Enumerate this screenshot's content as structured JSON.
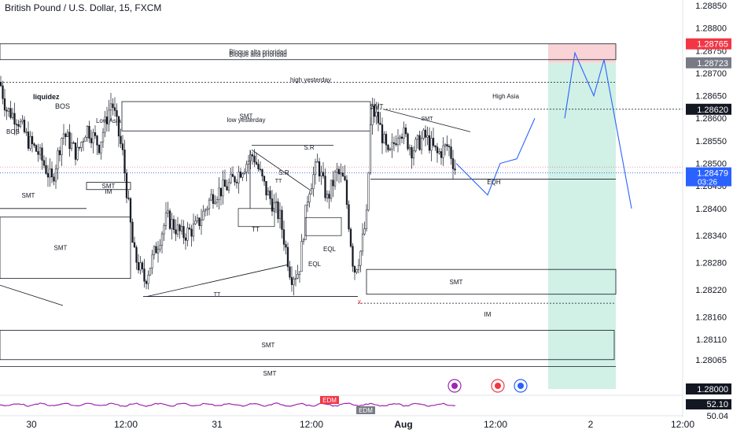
{
  "chart_data": {
    "type": "candlestick",
    "title": "British Pound / U.S. Dollar, 15, FXCM",
    "ylim": [
      1.2798,
      1.2888
    ],
    "y_ticks": [
      "1.28850",
      "1.28800",
      "1.28750",
      "1.28700",
      "1.28650",
      "1.28600",
      "1.28550",
      "1.28500",
      "1.28450",
      "1.28400",
      "1.28340",
      "1.28280",
      "1.28220",
      "1.28160",
      "1.28110",
      "1.28065",
      "1.28000"
    ],
    "x_ticks": [
      "30",
      "12:00",
      "31",
      "12:00",
      "Aug",
      "12:00",
      "2",
      "12:00"
    ],
    "price_tags": [
      {
        "label": "1.28765",
        "value": 1.28765,
        "color": "#f23645"
      },
      {
        "label": "1.28723",
        "value": 1.28723,
        "color": "#787b86"
      },
      {
        "label": "1.28620",
        "value": 1.2862,
        "color": "#131722"
      },
      {
        "label": "1.28479",
        "value": 1.28479,
        "color": "#2962ff",
        "sub": "03:26"
      },
      {
        "label": "1.28000",
        "value": 1.28,
        "color": "#131722"
      }
    ],
    "zones": [
      {
        "label": "Bloque alta prioridad",
        "top": 1.28765,
        "bottom": 1.2873
      },
      {
        "label": "SMT",
        "top": 1.28637,
        "bottom": 1.28572
      },
      {
        "label": "SMT",
        "top": 1.28458,
        "bottom": 1.28442
      },
      {
        "label": "SMT",
        "top": 1.28381,
        "bottom": 1.28245
      },
      {
        "label": "SMT",
        "top": 1.28265,
        "bottom": 1.2821
      },
      {
        "label": "SMT",
        "top": 1.2813,
        "bottom": 1.28065
      }
    ],
    "annotations": [
      "Bloque alta prioridad",
      "liquidez",
      "BOS",
      "BOS",
      "Low Asia",
      "SMT",
      "IM",
      "high yesterday",
      "High Asia",
      "S.R",
      "S.R",
      "TT",
      "TT",
      "TT",
      "SMT",
      "EQL",
      "EQL",
      "EQH",
      "SMT",
      "low yesterday",
      "IM",
      "SMT"
    ],
    "projection": [
      1.285,
      1.2843,
      1.285,
      1.2851,
      1.286
    ],
    "projection_right": [
      1.286,
      1.28745,
      1.2865,
      1.2873,
      1.284
    ],
    "position": {
      "entry": 1.28723,
      "stop": 1.28765,
      "target": 1.28
    },
    "indicator": {
      "value": "52.10",
      "below": "50.04",
      "tag1": "EDM",
      "tag2": "EDM"
    }
  }
}
